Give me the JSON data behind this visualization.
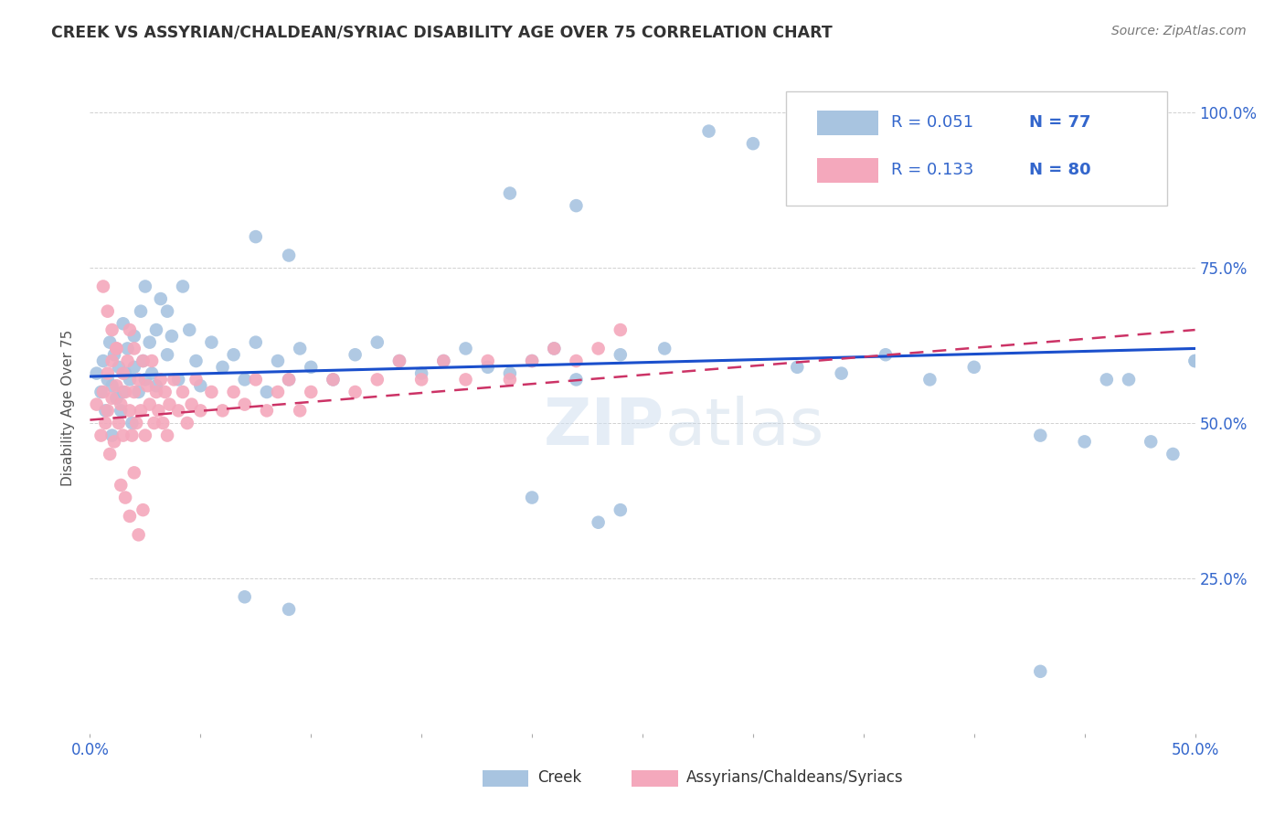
{
  "title": "CREEK VS ASSYRIAN/CHALDEAN/SYRIAC DISABILITY AGE OVER 75 CORRELATION CHART",
  "source": "Source: ZipAtlas.com",
  "ylabel": "Disability Age Over 75",
  "xmin": 0.0,
  "xmax": 0.5,
  "ymin": 0.0,
  "ymax": 1.05,
  "legend_label1": "Creek",
  "legend_label2": "Assyrians/Chaldeans/Syriacs",
  "R1": "0.051",
  "N1": "77",
  "R2": "0.133",
  "N2": "80",
  "color_blue": "#a8c4e0",
  "color_pink": "#f4a8bc",
  "trendline_blue": "#1a4fcc",
  "trendline_pink": "#cc3366",
  "title_color": "#333333",
  "source_color": "#777777",
  "legend_text_color": "#3366cc",
  "axis_label_color": "#3366cc",
  "creek_x": [
    0.003,
    0.005,
    0.006,
    0.007,
    0.008,
    0.009,
    0.01,
    0.01,
    0.011,
    0.012,
    0.013,
    0.014,
    0.015,
    0.015,
    0.016,
    0.017,
    0.018,
    0.019,
    0.02,
    0.02,
    0.022,
    0.023,
    0.024,
    0.025,
    0.025,
    0.027,
    0.028,
    0.03,
    0.03,
    0.032,
    0.035,
    0.035,
    0.037,
    0.04,
    0.042,
    0.045,
    0.048,
    0.05,
    0.055,
    0.06,
    0.065,
    0.07,
    0.075,
    0.08,
    0.085,
    0.09,
    0.095,
    0.1,
    0.11,
    0.12,
    0.13,
    0.14,
    0.15,
    0.16,
    0.17,
    0.18,
    0.19,
    0.2,
    0.21,
    0.22,
    0.24,
    0.26,
    0.28,
    0.3,
    0.32,
    0.34,
    0.36,
    0.38,
    0.4,
    0.43,
    0.45,
    0.46,
    0.47,
    0.48,
    0.49,
    0.5,
    0.5
  ],
  "creek_y": [
    0.58,
    0.55,
    0.6,
    0.52,
    0.57,
    0.63,
    0.56,
    0.48,
    0.61,
    0.54,
    0.59,
    0.52,
    0.66,
    0.55,
    0.58,
    0.62,
    0.57,
    0.5,
    0.64,
    0.59,
    0.55,
    0.68,
    0.6,
    0.57,
    0.72,
    0.63,
    0.58,
    0.56,
    0.65,
    0.7,
    0.61,
    0.68,
    0.64,
    0.57,
    0.72,
    0.65,
    0.6,
    0.56,
    0.63,
    0.59,
    0.61,
    0.57,
    0.63,
    0.55,
    0.6,
    0.57,
    0.62,
    0.59,
    0.57,
    0.61,
    0.63,
    0.6,
    0.58,
    0.6,
    0.62,
    0.59,
    0.58,
    0.6,
    0.62,
    0.57,
    0.61,
    0.62,
    0.97,
    0.95,
    0.59,
    0.58,
    0.61,
    0.57,
    0.59,
    0.48,
    0.47,
    0.57,
    0.57,
    0.47,
    0.45,
    0.6,
    0.6
  ],
  "creek_y_extra": [
    0.87,
    0.85,
    0.8,
    0.77,
    0.22,
    0.2,
    0.1,
    0.38,
    0.36,
    0.34
  ],
  "creek_x_extra": [
    0.19,
    0.22,
    0.075,
    0.09,
    0.07,
    0.09,
    0.43,
    0.2,
    0.24,
    0.23
  ],
  "acs_x": [
    0.003,
    0.005,
    0.006,
    0.007,
    0.008,
    0.008,
    0.009,
    0.01,
    0.01,
    0.011,
    0.012,
    0.012,
    0.013,
    0.014,
    0.015,
    0.015,
    0.016,
    0.017,
    0.018,
    0.018,
    0.019,
    0.02,
    0.02,
    0.021,
    0.022,
    0.023,
    0.024,
    0.025,
    0.026,
    0.027,
    0.028,
    0.029,
    0.03,
    0.031,
    0.032,
    0.033,
    0.034,
    0.035,
    0.036,
    0.038,
    0.04,
    0.042,
    0.044,
    0.046,
    0.048,
    0.05,
    0.055,
    0.06,
    0.065,
    0.07,
    0.075,
    0.08,
    0.085,
    0.09,
    0.095,
    0.1,
    0.11,
    0.12,
    0.13,
    0.14,
    0.15,
    0.16,
    0.17,
    0.18,
    0.19,
    0.2,
    0.21,
    0.22,
    0.23,
    0.24,
    0.006,
    0.008,
    0.01,
    0.012,
    0.014,
    0.016,
    0.018,
    0.02,
    0.022,
    0.024
  ],
  "acs_y": [
    0.53,
    0.48,
    0.55,
    0.5,
    0.52,
    0.58,
    0.45,
    0.54,
    0.6,
    0.47,
    0.56,
    0.62,
    0.5,
    0.53,
    0.48,
    0.58,
    0.55,
    0.6,
    0.52,
    0.65,
    0.48,
    0.55,
    0.62,
    0.5,
    0.57,
    0.52,
    0.6,
    0.48,
    0.56,
    0.53,
    0.6,
    0.5,
    0.55,
    0.52,
    0.57,
    0.5,
    0.55,
    0.48,
    0.53,
    0.57,
    0.52,
    0.55,
    0.5,
    0.53,
    0.57,
    0.52,
    0.55,
    0.52,
    0.55,
    0.53,
    0.57,
    0.52,
    0.55,
    0.57,
    0.52,
    0.55,
    0.57,
    0.55,
    0.57,
    0.6,
    0.57,
    0.6,
    0.57,
    0.6,
    0.57,
    0.6,
    0.62,
    0.6,
    0.62,
    0.65,
    0.72,
    0.68,
    0.65,
    0.62,
    0.4,
    0.38,
    0.35,
    0.42,
    0.32,
    0.36
  ],
  "creek_trend_x": [
    0.0,
    0.5
  ],
  "creek_trend_y": [
    0.575,
    0.62
  ],
  "acs_trend_x": [
    0.0,
    0.5
  ],
  "acs_trend_y": [
    0.505,
    0.65
  ]
}
